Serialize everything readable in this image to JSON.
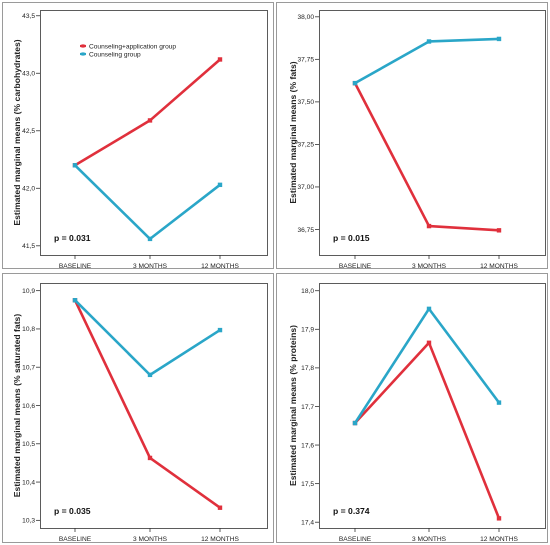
{
  "chart_data": [
    {
      "type": "line",
      "ylabel": "Estimated marginal means (% carbohydrates)",
      "annotation": "p = 0.031",
      "categories": [
        "BASELINE",
        "3 MONTHS",
        "12 MONTHS"
      ],
      "ylim": [
        41.42,
        43.55
      ],
      "yticks": [
        "41,5",
        "42,0",
        "42,5",
        "43,0",
        "43,5"
      ],
      "ytick_values": [
        41.5,
        42.0,
        42.5,
        43.0,
        43.5
      ],
      "legend": {
        "position": "top-left",
        "entries": [
          "Counseling+application group",
          "Counseling group"
        ]
      },
      "series": [
        {
          "name": "Counseling+application group",
          "color": "#e0303c",
          "values": [
            42.2,
            42.59,
            43.12
          ]
        },
        {
          "name": "Counseling group",
          "color": "#2aa6c8",
          "values": [
            42.2,
            41.56,
            42.03
          ]
        }
      ]
    },
    {
      "type": "line",
      "ylabel": "Estimated marginal means (% fats)",
      "annotation": "p = 0.015",
      "categories": [
        "BASELINE",
        "3 MONTHS",
        "12 MONTHS"
      ],
      "ylim": [
        36.6,
        38.04
      ],
      "yticks": [
        "36,75",
        "37,00",
        "37,25",
        "37,50",
        "37,75",
        "38,00"
      ],
      "ytick_values": [
        36.75,
        37.0,
        37.25,
        37.5,
        37.75,
        38.0
      ],
      "series": [
        {
          "name": "Counseling+application group",
          "color": "#e0303c",
          "values": [
            37.61,
            36.77,
            36.745
          ]
        },
        {
          "name": "Counseling group",
          "color": "#2aa6c8",
          "values": [
            37.61,
            37.855,
            37.87
          ]
        }
      ]
    },
    {
      "type": "line",
      "ylabel": "Estimated marginal means (% saturated fats)",
      "annotation": "p = 0.035",
      "categories": [
        "BASELINE",
        "3 MONTHS",
        "12 MONTHS"
      ],
      "ylim": [
        10.28,
        10.92
      ],
      "yticks": [
        "10,3",
        "10,4",
        "10,5",
        "10,6",
        "10,7",
        "10,8",
        "10,9"
      ],
      "ytick_values": [
        10.3,
        10.4,
        10.5,
        10.6,
        10.7,
        10.8,
        10.9
      ],
      "series": [
        {
          "name": "Counseling+application group",
          "color": "#e0303c",
          "values": [
            10.875,
            10.463,
            10.333
          ]
        },
        {
          "name": "Counseling group",
          "color": "#2aa6c8",
          "values": [
            10.875,
            10.68,
            10.797
          ]
        }
      ]
    },
    {
      "type": "line",
      "ylabel": "Estimated marginal means (% proteins)",
      "annotation": "p = 0.374",
      "categories": [
        "BASELINE",
        "3 MONTHS",
        "12 MONTHS"
      ],
      "ylim": [
        17.385,
        18.02
      ],
      "yticks": [
        "17,4",
        "17,5",
        "17,6",
        "17,7",
        "17,8",
        "17,9",
        "18,0"
      ],
      "ytick_values": [
        17.4,
        17.5,
        17.6,
        17.7,
        17.8,
        17.9,
        18.0
      ],
      "series": [
        {
          "name": "Counseling+application group",
          "color": "#e0303c",
          "values": [
            17.657,
            17.865,
            17.41
          ]
        },
        {
          "name": "Counseling group",
          "color": "#2aa6c8",
          "values": [
            17.657,
            17.953,
            17.71
          ]
        }
      ]
    }
  ]
}
